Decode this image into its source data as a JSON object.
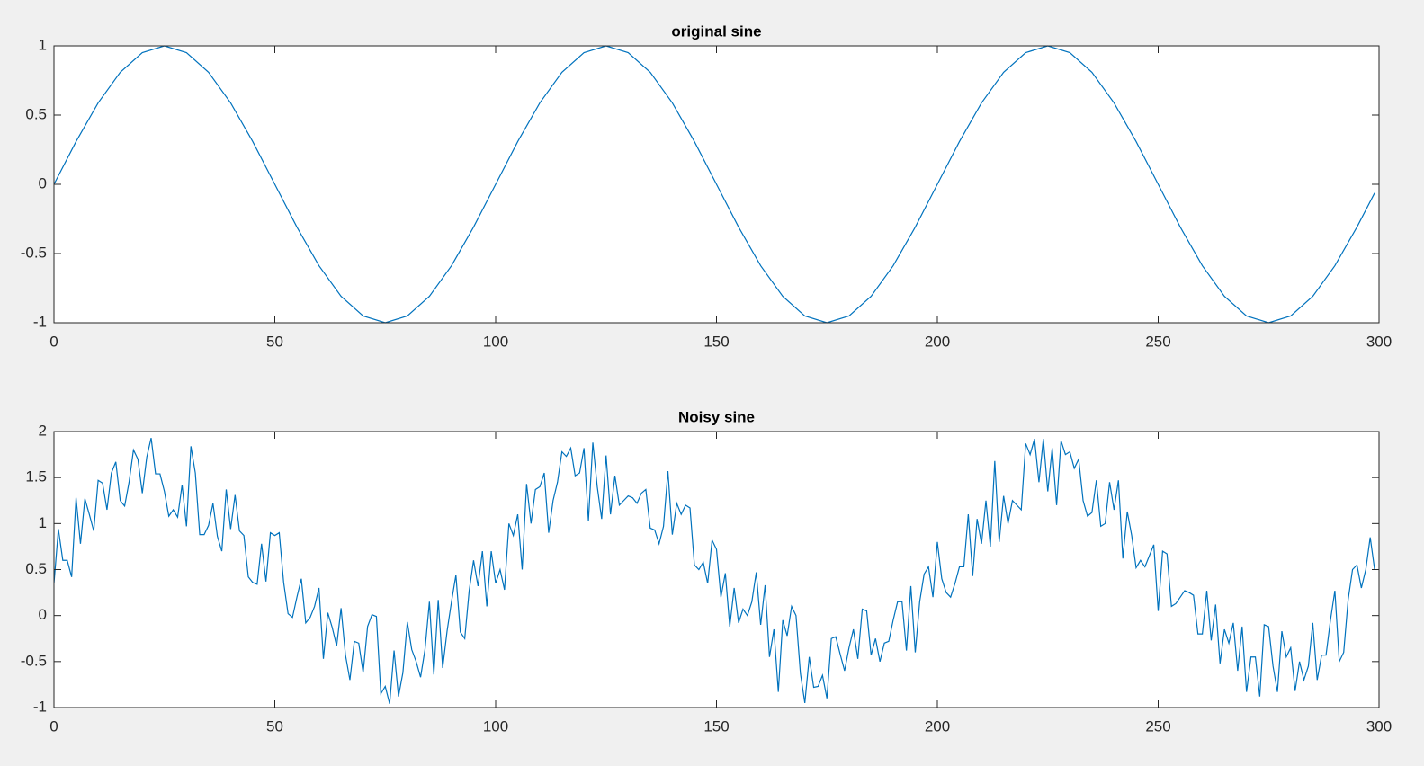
{
  "chart_data": [
    {
      "type": "line",
      "title": "original sine",
      "color": "#0072bd",
      "x": [
        0,
        5,
        10,
        15,
        20,
        25,
        30,
        35,
        40,
        45,
        50,
        55,
        60,
        65,
        70,
        75,
        80,
        85,
        90,
        95,
        100,
        105,
        110,
        115,
        120,
        125,
        130,
        135,
        140,
        145,
        150,
        155,
        160,
        165,
        170,
        175,
        180,
        185,
        190,
        195,
        200,
        205,
        210,
        215,
        220,
        225,
        230,
        235,
        240,
        245,
        250,
        255,
        260,
        265,
        270,
        275,
        280,
        285,
        290,
        295,
        299
      ],
      "values": [
        0,
        0.309,
        0.588,
        0.809,
        0.951,
        1,
        0.951,
        0.809,
        0.588,
        0.309,
        0,
        -0.309,
        -0.588,
        -0.809,
        -0.951,
        -1,
        -0.951,
        -0.809,
        -0.588,
        -0.309,
        0,
        0.309,
        0.588,
        0.809,
        0.951,
        1,
        0.951,
        0.809,
        0.588,
        0.309,
        0,
        -0.309,
        -0.588,
        -0.809,
        -0.951,
        -1,
        -0.951,
        -0.809,
        -0.588,
        -0.309,
        0,
        0.309,
        0.588,
        0.809,
        0.951,
        1,
        0.951,
        0.809,
        0.588,
        0.309,
        0,
        -0.309,
        -0.588,
        -0.809,
        -0.951,
        -1,
        -0.951,
        -0.809,
        -0.588,
        -0.309,
        -0.063
      ],
      "xlim": [
        0,
        300
      ],
      "xticks": [
        0,
        50,
        100,
        150,
        200,
        250,
        300
      ],
      "ylim": [
        -1,
        1
      ],
      "yticks": [
        -1,
        -0.5,
        0,
        0.5,
        1
      ]
    },
    {
      "type": "line",
      "title": "Noisy sine",
      "color": "#0072bd",
      "x": [
        0,
        1,
        2,
        3,
        4,
        5,
        6,
        7,
        8,
        9,
        10,
        11,
        12,
        13,
        14,
        15,
        16,
        17,
        18,
        19,
        20,
        21,
        22,
        23,
        24,
        25,
        26,
        27,
        28,
        29,
        30,
        31,
        32,
        33,
        34,
        35,
        36,
        37,
        38,
        39,
        40,
        41,
        42,
        43,
        44,
        45,
        46,
        47,
        48,
        49,
        50,
        51,
        52,
        53,
        54,
        55,
        56,
        57,
        58,
        59,
        60,
        61,
        62,
        63,
        64,
        65,
        66,
        67,
        68,
        69,
        70,
        71,
        72,
        73,
        74,
        75,
        76,
        77,
        78,
        79,
        80,
        81,
        82,
        83,
        84,
        85,
        86,
        87,
        88,
        89,
        90,
        91,
        92,
        93,
        94,
        95,
        96,
        97,
        98,
        99,
        100,
        101,
        102,
        103,
        104,
        105,
        106,
        107,
        108,
        109,
        110,
        111,
        112,
        113,
        114,
        115,
        116,
        117,
        118,
        119,
        120,
        121,
        122,
        123,
        124,
        125,
        126,
        127,
        128,
        129,
        130,
        131,
        132,
        133,
        134,
        135,
        136,
        137,
        138,
        139,
        140,
        141,
        142,
        143,
        144,
        145,
        146,
        147,
        148,
        149,
        150,
        151,
        152,
        153,
        154,
        155,
        156,
        157,
        158,
        159,
        160,
        161,
        162,
        163,
        164,
        165,
        166,
        167,
        168,
        169,
        170,
        171,
        172,
        173,
        174,
        175,
        176,
        177,
        178,
        179,
        180,
        181,
        182,
        183,
        184,
        185,
        186,
        187,
        188,
        189,
        190,
        191,
        192,
        193,
        194,
        195,
        196,
        197,
        198,
        199,
        200,
        201,
        202,
        203,
        204,
        205,
        206,
        207,
        208,
        209,
        210,
        211,
        212,
        213,
        214,
        215,
        216,
        217,
        218,
        219,
        220,
        221,
        222,
        223,
        224,
        225,
        226,
        227,
        228,
        229,
        230,
        231,
        232,
        233,
        234,
        235,
        236,
        237,
        238,
        239,
        240,
        241,
        242,
        243,
        244,
        245,
        246,
        247,
        248,
        249,
        250,
        251,
        252,
        253,
        254,
        255,
        256,
        257,
        258,
        259,
        260,
        261,
        262,
        263,
        264,
        265,
        266,
        267,
        268,
        269,
        270,
        271,
        272,
        273,
        274,
        275,
        276,
        277,
        278,
        279,
        280,
        281,
        282,
        283,
        284,
        285,
        286,
        287,
        288,
        289,
        290,
        291,
        292,
        293,
        294,
        295,
        296,
        297,
        298,
        299
      ],
      "values": [
        0.35,
        0.94,
        0.6,
        0.6,
        0.42,
        1.28,
        0.78,
        1.27,
        1.1,
        0.92,
        1.47,
        1.44,
        1.15,
        1.55,
        1.67,
        1.25,
        1.19,
        1.45,
        1.8,
        1.7,
        1.33,
        1.72,
        1.93,
        1.54,
        1.54,
        1.35,
        1.08,
        1.15,
        1.07,
        1.42,
        0.97,
        1.84,
        1.55,
        0.88,
        0.88,
        0.98,
        1.22,
        0.86,
        0.7,
        1.37,
        0.94,
        1.31,
        0.92,
        0.87,
        0.42,
        0.36,
        0.34,
        0.78,
        0.37,
        0.9,
        0.87,
        0.9,
        0.36,
        0.02,
        -0.02,
        0.2,
        0.4,
        -0.08,
        -0.02,
        0.1,
        0.3,
        -0.47,
        0.03,
        -0.13,
        -0.33,
        0.08,
        -0.43,
        -0.7,
        -0.28,
        -0.3,
        -0.62,
        -0.12,
        0.01,
        -0.01,
        -0.85,
        -0.77,
        -0.96,
        -0.38,
        -0.88,
        -0.62,
        -0.07,
        -0.37,
        -0.5,
        -0.67,
        -0.37,
        0.15,
        -0.64,
        0.17,
        -0.57,
        -0.17,
        0.15,
        0.44,
        -0.18,
        -0.25,
        0.27,
        0.6,
        0.32,
        0.7,
        0.1,
        0.7,
        0.35,
        0.5,
        0.28,
        1.0,
        0.87,
        1.1,
        0.5,
        1.43,
        1.0,
        1.37,
        1.4,
        1.55,
        0.9,
        1.25,
        1.45,
        1.78,
        1.73,
        1.82,
        1.52,
        1.55,
        1.82,
        1.03,
        1.88,
        1.4,
        1.05,
        1.74,
        1.1,
        1.52,
        1.2,
        1.25,
        1.3,
        1.28,
        1.22,
        1.33,
        1.37,
        0.95,
        0.93,
        0.78,
        0.97,
        1.57,
        0.88,
        1.22,
        1.1,
        1.2,
        1.17,
        0.55,
        0.5,
        0.58,
        0.35,
        0.82,
        0.72,
        0.2,
        0.46,
        -0.12,
        0.3,
        -0.08,
        0.07,
        0.0,
        0.15,
        0.47,
        -0.1,
        0.33,
        -0.45,
        -0.15,
        -0.83,
        -0.05,
        -0.22,
        0.1,
        0.0,
        -0.63,
        -0.95,
        -0.45,
        -0.78,
        -0.77,
        -0.65,
        -0.9,
        -0.25,
        -0.23,
        -0.42,
        -0.6,
        -0.35,
        -0.15,
        -0.47,
        0.07,
        0.05,
        -0.43,
        -0.25,
        -0.5,
        -0.3,
        -0.28,
        -0.05,
        0.15,
        0.15,
        -0.38,
        0.32,
        -0.4,
        0.15,
        0.45,
        0.53,
        0.2,
        0.8,
        0.4,
        0.25,
        0.2,
        0.35,
        0.53,
        0.53,
        1.1,
        0.43,
        1.05,
        0.78,
        1.25,
        0.75,
        1.68,
        0.8,
        1.3,
        1.0,
        1.25,
        1.2,
        1.15,
        1.87,
        1.75,
        1.92,
        1.45,
        1.92,
        1.35,
        1.82,
        1.2,
        1.9,
        1.75,
        1.78,
        1.6,
        1.7,
        1.25,
        1.08,
        1.12,
        1.47,
        0.97,
        1.0,
        1.45,
        1.15,
        1.47,
        0.62,
        1.13,
        0.87,
        0.52,
        0.6,
        0.53,
        0.65,
        0.77,
        0.05,
        0.7,
        0.67,
        0.1,
        0.13,
        0.2,
        0.27,
        0.25,
        0.22,
        -0.2,
        -0.2,
        0.27,
        -0.27,
        0.12,
        -0.52,
        -0.15,
        -0.3,
        -0.08,
        -0.6,
        -0.12,
        -0.83,
        -0.45,
        -0.45,
        -0.88,
        -0.1,
        -0.12,
        -0.55,
        -0.83,
        -0.17,
        -0.45,
        -0.35,
        -0.82,
        -0.5,
        -0.7,
        -0.55,
        -0.08,
        -0.7,
        -0.43,
        -0.43,
        -0.05,
        0.27,
        -0.5,
        -0.4,
        0.17,
        0.5,
        0.55,
        0.3,
        0.5,
        0.85,
        0.5
      ],
      "xlim": [
        0,
        300
      ],
      "xticks": [
        0,
        50,
        100,
        150,
        200,
        250,
        300
      ],
      "ylim": [
        -1,
        2
      ],
      "yticks": [
        -1,
        -0.5,
        0,
        0.5,
        1,
        1.5,
        2
      ]
    }
  ]
}
